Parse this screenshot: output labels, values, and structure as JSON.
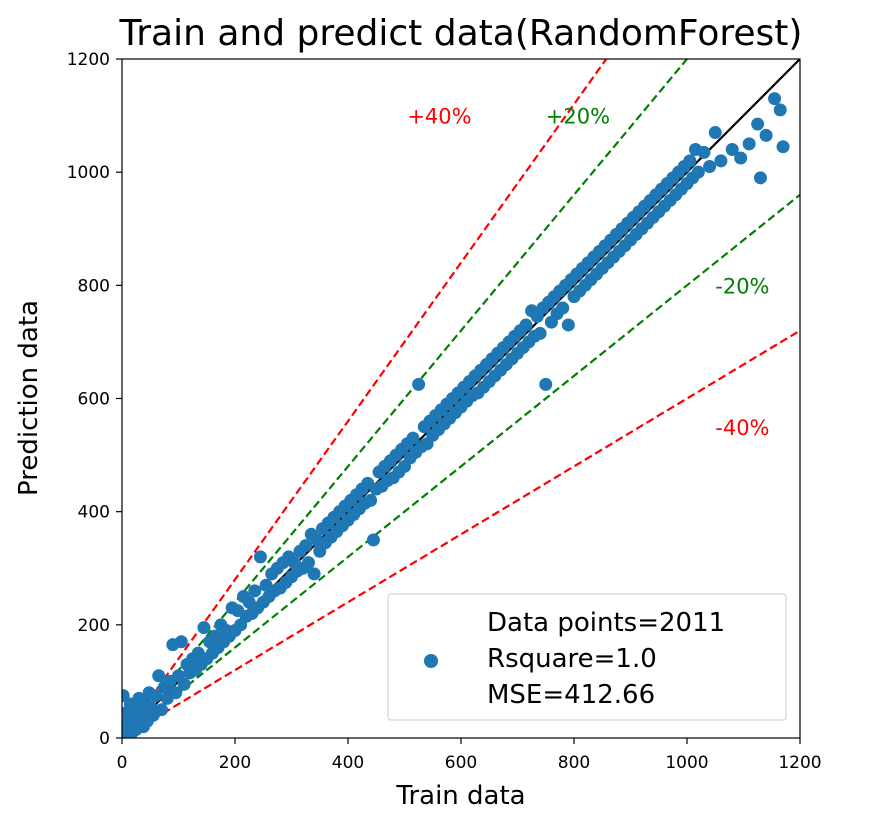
{
  "chart_data": {
    "type": "scatter",
    "title": "Train and predict data(RandomForest)",
    "xlabel": "Train data",
    "ylabel": "Prediction data",
    "xlim": [
      0,
      1200
    ],
    "ylim": [
      0,
      1200
    ],
    "xticks": [
      0,
      200,
      400,
      600,
      800,
      1000,
      1200
    ],
    "yticks": [
      0,
      200,
      400,
      600,
      800,
      1000,
      1200
    ],
    "grid": false,
    "legend_position": "lower-right",
    "legend": {
      "lines": [
        "Data points=2011",
        "Rsquare=1.0",
        "MSE=412.66"
      ]
    },
    "reference_lines": [
      {
        "label": "",
        "slope": 1.0,
        "color": "#000000",
        "style": "solid"
      },
      {
        "label": "+20%",
        "slope": 1.2,
        "color": "#008000",
        "style": "dashed"
      },
      {
        "label": "-20%",
        "slope": 0.8,
        "color": "#008000",
        "style": "dashed"
      },
      {
        "label": "+40%",
        "slope": 1.4,
        "color": "#ff0000",
        "style": "dashed"
      },
      {
        "label": "-40%",
        "slope": 0.6,
        "color": "#ff0000",
        "style": "dashed"
      }
    ],
    "annotations": [
      {
        "text": "+40%",
        "x": 505,
        "y": 1100,
        "color": "#ff0000"
      },
      {
        "text": "+20%",
        "x": 750,
        "y": 1100,
        "color": "#008000"
      },
      {
        "text": "-20%",
        "x": 1050,
        "y": 800,
        "color": "#008000"
      },
      {
        "text": "-40%",
        "x": 1050,
        "y": 550,
        "color": "#ff0000"
      }
    ],
    "series": [
      {
        "color": "#1f77b4",
        "points": [
          [
            2,
            75
          ],
          [
            5,
            20
          ],
          [
            8,
            45
          ],
          [
            10,
            5
          ],
          [
            12,
            30
          ],
          [
            15,
            60
          ],
          [
            18,
            10
          ],
          [
            20,
            35
          ],
          [
            22,
            50
          ],
          [
            25,
            15
          ],
          [
            28,
            40
          ],
          [
            30,
            70
          ],
          [
            32,
            25
          ],
          [
            35,
            55
          ],
          [
            38,
            20
          ],
          [
            40,
            65
          ],
          [
            42,
            45
          ],
          [
            45,
            30
          ],
          [
            48,
            80
          ],
          [
            50,
            55
          ],
          [
            55,
            40
          ],
          [
            60,
            75
          ],
          [
            65,
            110
          ],
          [
            70,
            50
          ],
          [
            75,
            90
          ],
          [
            80,
            70
          ],
          [
            85,
            100
          ],
          [
            90,
            165
          ],
          [
            95,
            80
          ],
          [
            100,
            110
          ],
          [
            105,
            170
          ],
          [
            110,
            95
          ],
          [
            115,
            130
          ],
          [
            120,
            115
          ],
          [
            125,
            140
          ],
          [
            130,
            120
          ],
          [
            135,
            150
          ],
          [
            140,
            130
          ],
          [
            145,
            195
          ],
          [
            150,
            140
          ],
          [
            155,
            170
          ],
          [
            160,
            150
          ],
          [
            165,
            180
          ],
          [
            170,
            160
          ],
          [
            175,
            200
          ],
          [
            180,
            170
          ],
          [
            185,
            190
          ],
          [
            190,
            180
          ],
          [
            195,
            230
          ],
          [
            200,
            190
          ],
          [
            205,
            225
          ],
          [
            210,
            200
          ],
          [
            215,
            250
          ],
          [
            220,
            215
          ],
          [
            225,
            240
          ],
          [
            230,
            220
          ],
          [
            235,
            260
          ],
          [
            240,
            230
          ],
          [
            245,
            320
          ],
          [
            250,
            240
          ],
          [
            255,
            270
          ],
          [
            260,
            250
          ],
          [
            265,
            290
          ],
          [
            270,
            260
          ],
          [
            275,
            300
          ],
          [
            280,
            265
          ],
          [
            285,
            310
          ],
          [
            290,
            275
          ],
          [
            295,
            320
          ],
          [
            300,
            285
          ],
          [
            305,
            310
          ],
          [
            310,
            295
          ],
          [
            315,
            330
          ],
          [
            320,
            300
          ],
          [
            325,
            340
          ],
          [
            330,
            310
          ],
          [
            335,
            360
          ],
          [
            340,
            290
          ],
          [
            345,
            350
          ],
          [
            350,
            330
          ],
          [
            355,
            370
          ],
          [
            360,
            345
          ],
          [
            365,
            380
          ],
          [
            370,
            355
          ],
          [
            375,
            390
          ],
          [
            380,
            365
          ],
          [
            385,
            400
          ],
          [
            390,
            375
          ],
          [
            395,
            410
          ],
          [
            400,
            385
          ],
          [
            405,
            420
          ],
          [
            410,
            395
          ],
          [
            415,
            430
          ],
          [
            420,
            405
          ],
          [
            425,
            440
          ],
          [
            430,
            415
          ],
          [
            435,
            450
          ],
          [
            440,
            420
          ],
          [
            445,
            350
          ],
          [
            450,
            440
          ],
          [
            455,
            470
          ],
          [
            460,
            445
          ],
          [
            465,
            480
          ],
          [
            470,
            455
          ],
          [
            475,
            490
          ],
          [
            480,
            460
          ],
          [
            485,
            500
          ],
          [
            490,
            470
          ],
          [
            495,
            510
          ],
          [
            500,
            480
          ],
          [
            505,
            520
          ],
          [
            510,
            495
          ],
          [
            515,
            530
          ],
          [
            520,
            505
          ],
          [
            525,
            625
          ],
          [
            530,
            515
          ],
          [
            535,
            550
          ],
          [
            540,
            520
          ],
          [
            545,
            560
          ],
          [
            550,
            535
          ],
          [
            555,
            570
          ],
          [
            560,
            545
          ],
          [
            565,
            580
          ],
          [
            570,
            555
          ],
          [
            575,
            590
          ],
          [
            580,
            565
          ],
          [
            585,
            600
          ],
          [
            590,
            575
          ],
          [
            595,
            610
          ],
          [
            600,
            585
          ],
          [
            605,
            620
          ],
          [
            610,
            595
          ],
          [
            615,
            630
          ],
          [
            620,
            605
          ],
          [
            625,
            640
          ],
          [
            630,
            610
          ],
          [
            635,
            650
          ],
          [
            640,
            620
          ],
          [
            645,
            660
          ],
          [
            650,
            630
          ],
          [
            655,
            670
          ],
          [
            660,
            640
          ],
          [
            665,
            680
          ],
          [
            670,
            650
          ],
          [
            675,
            690
          ],
          [
            680,
            660
          ],
          [
            685,
            700
          ],
          [
            690,
            670
          ],
          [
            695,
            710
          ],
          [
            700,
            680
          ],
          [
            705,
            720
          ],
          [
            710,
            690
          ],
          [
            715,
            730
          ],
          [
            720,
            700
          ],
          [
            725,
            755
          ],
          [
            730,
            710
          ],
          [
            735,
            745
          ],
          [
            740,
            715
          ],
          [
            745,
            760
          ],
          [
            750,
            625
          ],
          [
            755,
            770
          ],
          [
            760,
            735
          ],
          [
            765,
            780
          ],
          [
            770,
            750
          ],
          [
            775,
            790
          ],
          [
            780,
            760
          ],
          [
            785,
            800
          ],
          [
            790,
            730
          ],
          [
            795,
            810
          ],
          [
            800,
            780
          ],
          [
            805,
            820
          ],
          [
            810,
            790
          ],
          [
            815,
            830
          ],
          [
            820,
            800
          ],
          [
            825,
            840
          ],
          [
            830,
            810
          ],
          [
            835,
            850
          ],
          [
            840,
            820
          ],
          [
            845,
            860
          ],
          [
            850,
            830
          ],
          [
            855,
            870
          ],
          [
            860,
            840
          ],
          [
            865,
            880
          ],
          [
            870,
            850
          ],
          [
            875,
            890
          ],
          [
            880,
            860
          ],
          [
            885,
            900
          ],
          [
            890,
            870
          ],
          [
            895,
            910
          ],
          [
            900,
            880
          ],
          [
            905,
            920
          ],
          [
            910,
            890
          ],
          [
            915,
            930
          ],
          [
            920,
            900
          ],
          [
            925,
            940
          ],
          [
            930,
            910
          ],
          [
            935,
            950
          ],
          [
            940,
            920
          ],
          [
            945,
            960
          ],
          [
            950,
            930
          ],
          [
            955,
            970
          ],
          [
            960,
            940
          ],
          [
            965,
            980
          ],
          [
            970,
            950
          ],
          [
            975,
            990
          ],
          [
            980,
            960
          ],
          [
            985,
            1000
          ],
          [
            990,
            970
          ],
          [
            995,
            1010
          ],
          [
            1000,
            980
          ],
          [
            1005,
            1020
          ],
          [
            1010,
            990
          ],
          [
            1015,
            1040
          ],
          [
            1020,
            1000
          ],
          [
            1030,
            1035
          ],
          [
            1040,
            1010
          ],
          [
            1050,
            1070
          ],
          [
            1060,
            1020
          ],
          [
            1080,
            1040
          ],
          [
            1095,
            1025
          ],
          [
            1110,
            1050
          ],
          [
            1125,
            1085
          ],
          [
            1130,
            990
          ],
          [
            1140,
            1065
          ],
          [
            1155,
            1130
          ],
          [
            1165,
            1110
          ],
          [
            1170,
            1045
          ]
        ]
      }
    ]
  }
}
